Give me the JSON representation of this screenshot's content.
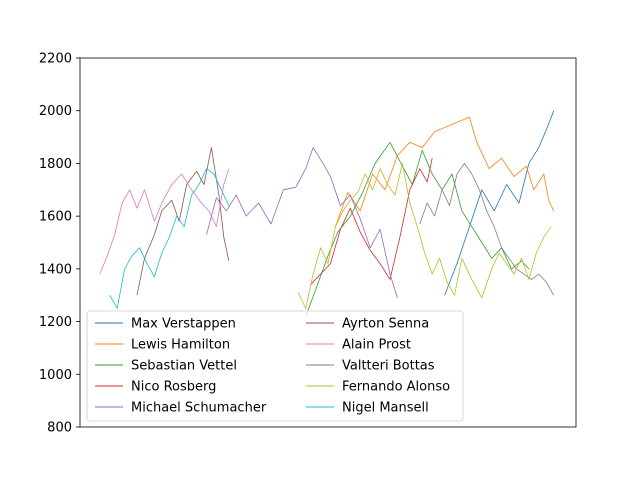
{
  "chart_data": {
    "type": "line",
    "title": "",
    "xlabel": "",
    "ylabel": "",
    "ylim": [
      800,
      2200
    ],
    "yticks": [
      800,
      1000,
      1200,
      1400,
      1600,
      1800,
      2000,
      2200
    ],
    "xticks_visible": false,
    "grid": false,
    "legend": {
      "placement": "lower-left",
      "columns": 2
    },
    "x_range": [
      0,
      1000
    ],
    "series": [
      {
        "name": "Max Verstappen",
        "color": "#1f77b4",
        "points": [
          [
            735,
            1300
          ],
          [
            760,
            1420
          ],
          [
            785,
            1560
          ],
          [
            810,
            1700
          ],
          [
            835,
            1620
          ],
          [
            860,
            1720
          ],
          [
            885,
            1650
          ],
          [
            905,
            1800
          ],
          [
            925,
            1860
          ],
          [
            945,
            1950
          ],
          [
            955,
            2000
          ]
        ]
      },
      {
        "name": "Lewis Hamilton",
        "color": "#ff7f0e",
        "points": [
          [
            515,
            1560
          ],
          [
            540,
            1690
          ],
          [
            565,
            1620
          ],
          [
            590,
            1760
          ],
          [
            615,
            1700
          ],
          [
            640,
            1830
          ],
          [
            665,
            1880
          ],
          [
            690,
            1860
          ],
          [
            715,
            1920
          ],
          [
            740,
            1940
          ],
          [
            765,
            1960
          ],
          [
            785,
            1975
          ],
          [
            800,
            1880
          ],
          [
            825,
            1780
          ],
          [
            850,
            1820
          ],
          [
            875,
            1750
          ],
          [
            900,
            1790
          ],
          [
            915,
            1700
          ],
          [
            935,
            1760
          ],
          [
            945,
            1660
          ],
          [
            955,
            1620
          ]
        ]
      },
      {
        "name": "Sebastian Vettel",
        "color": "#2ca02c",
        "points": [
          [
            455,
            1220
          ],
          [
            475,
            1320
          ],
          [
            500,
            1450
          ],
          [
            520,
            1540
          ],
          [
            545,
            1600
          ],
          [
            570,
            1690
          ],
          [
            595,
            1800
          ],
          [
            625,
            1880
          ],
          [
            650,
            1790
          ],
          [
            670,
            1720
          ],
          [
            690,
            1850
          ],
          [
            710,
            1760
          ],
          [
            730,
            1700
          ],
          [
            750,
            1760
          ],
          [
            770,
            1620
          ],
          [
            790,
            1560
          ],
          [
            810,
            1500
          ],
          [
            830,
            1440
          ],
          [
            850,
            1480
          ],
          [
            870,
            1400
          ],
          [
            890,
            1430
          ],
          [
            905,
            1400
          ]
        ]
      },
      {
        "name": "Nico Rosberg",
        "color": "#d62728",
        "points": [
          [
            465,
            1340
          ],
          [
            485,
            1380
          ],
          [
            505,
            1420
          ],
          [
            525,
            1550
          ],
          [
            545,
            1630
          ],
          [
            565,
            1540
          ],
          [
            585,
            1470
          ],
          [
            605,
            1420
          ],
          [
            625,
            1360
          ],
          [
            645,
            1520
          ],
          [
            665,
            1700
          ],
          [
            685,
            1780
          ],
          [
            700,
            1730
          ],
          [
            710,
            1820
          ]
        ]
      },
      {
        "name": "Michael Schumacher",
        "color": "#9467bd",
        "points": [
          [
            255,
            1530
          ],
          [
            275,
            1670
          ],
          [
            295,
            1620
          ],
          [
            315,
            1680
          ],
          [
            335,
            1600
          ],
          [
            360,
            1650
          ],
          [
            385,
            1570
          ],
          [
            410,
            1700
          ],
          [
            435,
            1710
          ],
          [
            455,
            1780
          ],
          [
            470,
            1860
          ],
          [
            490,
            1800
          ],
          [
            505,
            1750
          ],
          [
            525,
            1640
          ],
          [
            545,
            1680
          ],
          [
            565,
            1590
          ],
          [
            585,
            1480
          ],
          [
            605,
            1550
          ],
          [
            625,
            1380
          ],
          [
            640,
            1290
          ]
        ]
      },
      {
        "name": "Ayrton Senna",
        "color": "#8c564b",
        "points": [
          [
            115,
            1300
          ],
          [
            130,
            1440
          ],
          [
            150,
            1530
          ],
          [
            165,
            1620
          ],
          [
            185,
            1660
          ],
          [
            200,
            1580
          ],
          [
            215,
            1720
          ],
          [
            235,
            1770
          ],
          [
            250,
            1720
          ],
          [
            265,
            1860
          ],
          [
            280,
            1680
          ],
          [
            290,
            1520
          ],
          [
            300,
            1430
          ]
        ]
      },
      {
        "name": "Alain Prost",
        "color": "#e377c2",
        "points": [
          [
            40,
            1380
          ],
          [
            55,
            1450
          ],
          [
            70,
            1530
          ],
          [
            85,
            1650
          ],
          [
            100,
            1700
          ],
          [
            115,
            1630
          ],
          [
            130,
            1700
          ],
          [
            150,
            1580
          ],
          [
            165,
            1650
          ],
          [
            185,
            1720
          ],
          [
            205,
            1760
          ],
          [
            225,
            1700
          ],
          [
            245,
            1650
          ],
          [
            260,
            1620
          ],
          [
            275,
            1560
          ],
          [
            290,
            1720
          ],
          [
            300,
            1780
          ]
        ]
      },
      {
        "name": "Valtteri Bottas",
        "color": "#7f7f7f",
        "points": [
          [
            685,
            1570
          ],
          [
            700,
            1650
          ],
          [
            715,
            1600
          ],
          [
            730,
            1700
          ],
          [
            745,
            1640
          ],
          [
            760,
            1760
          ],
          [
            775,
            1800
          ],
          [
            790,
            1760
          ],
          [
            805,
            1700
          ],
          [
            820,
            1620
          ],
          [
            835,
            1560
          ],
          [
            850,
            1480
          ],
          [
            865,
            1440
          ],
          [
            880,
            1400
          ],
          [
            895,
            1380
          ],
          [
            910,
            1360
          ],
          [
            925,
            1380
          ],
          [
            940,
            1350
          ],
          [
            955,
            1300
          ]
        ]
      },
      {
        "name": "Fernando Alonso",
        "color": "#bcbd22",
        "points": [
          [
            440,
            1310
          ],
          [
            455,
            1250
          ],
          [
            470,
            1380
          ],
          [
            485,
            1480
          ],
          [
            500,
            1420
          ],
          [
            515,
            1560
          ],
          [
            530,
            1620
          ],
          [
            545,
            1660
          ],
          [
            560,
            1690
          ],
          [
            575,
            1760
          ],
          [
            590,
            1700
          ],
          [
            605,
            1780
          ],
          [
            620,
            1720
          ],
          [
            635,
            1680
          ],
          [
            650,
            1800
          ],
          [
            665,
            1650
          ],
          [
            680,
            1560
          ],
          [
            695,
            1460
          ],
          [
            710,
            1380
          ],
          [
            725,
            1440
          ],
          [
            740,
            1350
          ],
          [
            755,
            1300
          ],
          [
            770,
            1440
          ],
          [
            790,
            1360
          ],
          [
            810,
            1290
          ],
          [
            830,
            1400
          ],
          [
            845,
            1460
          ],
          [
            860,
            1420
          ],
          [
            875,
            1380
          ],
          [
            890,
            1440
          ],
          [
            905,
            1360
          ],
          [
            920,
            1460
          ],
          [
            935,
            1520
          ],
          [
            950,
            1560
          ]
        ]
      },
      {
        "name": "Nigel Mansell",
        "color": "#17becf",
        "points": [
          [
            60,
            1300
          ],
          [
            75,
            1250
          ],
          [
            90,
            1400
          ],
          [
            105,
            1450
          ],
          [
            120,
            1480
          ],
          [
            135,
            1420
          ],
          [
            150,
            1370
          ],
          [
            165,
            1460
          ],
          [
            180,
            1520
          ],
          [
            195,
            1600
          ],
          [
            210,
            1560
          ],
          [
            225,
            1680
          ],
          [
            240,
            1720
          ],
          [
            255,
            1780
          ],
          [
            270,
            1760
          ],
          [
            285,
            1700
          ],
          [
            300,
            1640
          ]
        ]
      }
    ]
  }
}
